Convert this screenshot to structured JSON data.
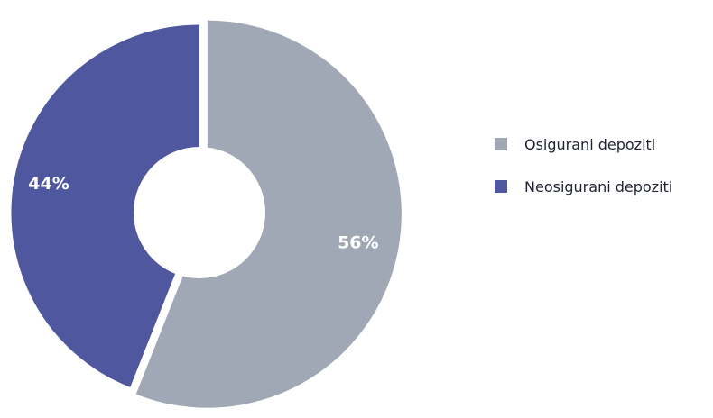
{
  "chart_data": {
    "type": "pie",
    "title": "",
    "slices": [
      {
        "name": "Osigurani depoziti",
        "value": 56,
        "label": "56%",
        "color": "#9fa8b4"
      },
      {
        "name": "Neosigurani depoziti",
        "value": 44,
        "label": "44%",
        "color": "#4f589e"
      }
    ],
    "donut": true,
    "legend": {
      "position": "right",
      "entries": [
        "Osigurani depoziti",
        "Neosigurani depoziti"
      ]
    }
  }
}
